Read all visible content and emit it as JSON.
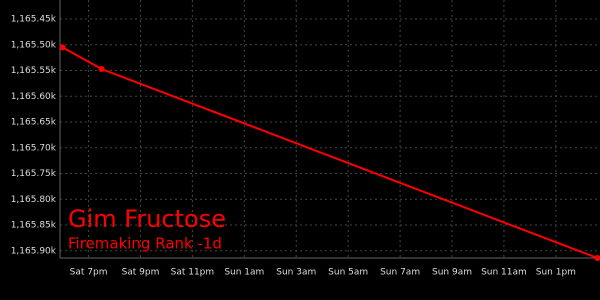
{
  "chart_data": {
    "type": "line",
    "title": "Gim Fructose",
    "subtitle": "Firemaking Rank -1d",
    "x": [
      18,
      19.5,
      38.6
    ],
    "series": [
      {
        "name": "Firemaking Rank",
        "color": "#ff0000",
        "values": [
          1165505,
          1165547,
          1165914
        ]
      }
    ],
    "xlim": [
      17.9,
      38.7
    ],
    "xticks": [
      {
        "value": 19,
        "label": "Sat 7pm"
      },
      {
        "value": 21,
        "label": "Sat 9pm"
      },
      {
        "value": 23,
        "label": "Sat 11pm"
      },
      {
        "value": 25,
        "label": "Sun 1am"
      },
      {
        "value": 27,
        "label": "Sun 3am"
      },
      {
        "value": 29,
        "label": "Sun 5am"
      },
      {
        "value": 31,
        "label": "Sun 7am"
      },
      {
        "value": 33,
        "label": "Sun 9am"
      },
      {
        "value": 35,
        "label": "Sun 11am"
      },
      {
        "value": 37,
        "label": "Sun 1pm"
      }
    ],
    "ylim": [
      1165914,
      1165413
    ],
    "yticks": [
      {
        "value": 1165450,
        "label": "1,165.45k"
      },
      {
        "value": 1165500,
        "label": "1,165.50k"
      },
      {
        "value": 1165550,
        "label": "1,165.55k"
      },
      {
        "value": 1165600,
        "label": "1,165.60k"
      },
      {
        "value": 1165650,
        "label": "1,165.65k"
      },
      {
        "value": 1165700,
        "label": "1,165.70k"
      },
      {
        "value": 1165750,
        "label": "1,165.75k"
      },
      {
        "value": 1165800,
        "label": "1,165.80k"
      },
      {
        "value": 1165850,
        "label": "1,165.85k"
      },
      {
        "value": 1165900,
        "label": "1,165.90k"
      }
    ],
    "grid": true
  }
}
